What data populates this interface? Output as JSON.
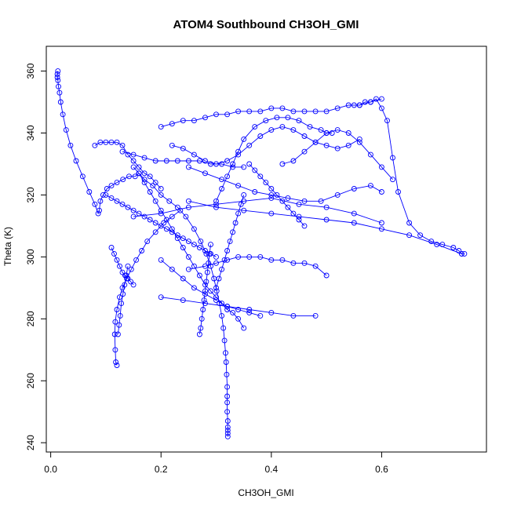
{
  "chart_data": {
    "type": "line",
    "title": "ATOM4 Southbound CH3OH_GMI",
    "xlabel": "CH3OH_GMI",
    "ylabel": "Theta (K)",
    "xlim": [
      -0.008,
      0.79
    ],
    "ylim": [
      237,
      368
    ],
    "x_ticks": [
      0.0,
      0.2,
      0.4,
      0.6
    ],
    "x_tick_labels": [
      "0.0",
      "0.2",
      "0.4",
      "0.6"
    ],
    "y_ticks": [
      240,
      260,
      280,
      300,
      320,
      340,
      360
    ],
    "y_tick_labels": [
      "240",
      "260",
      "280",
      "300",
      "320",
      "340",
      "360"
    ],
    "grid": false,
    "marker": "open-circle",
    "series_color": "#0000ff",
    "series": [
      {
        "x": [
          0.013,
          0.012,
          0.012,
          0.013,
          0.014,
          0.016,
          0.018,
          0.022,
          0.028,
          0.036,
          0.046,
          0.058,
          0.07,
          0.08,
          0.086,
          0.088,
          0.09,
          0.095,
          0.102,
          0.11,
          0.12,
          0.131,
          0.142,
          0.153,
          0.16
        ],
        "y": [
          360,
          359,
          358,
          357,
          355,
          353,
          350,
          346,
          341,
          336,
          331,
          326,
          321,
          317,
          314,
          315,
          318,
          320,
          322,
          323,
          324,
          325,
          326,
          326,
          327
        ]
      },
      {
        "x": [
          0.16,
          0.17,
          0.185,
          0.2,
          0.215,
          0.23,
          0.245,
          0.26,
          0.272,
          0.282,
          0.29,
          0.296,
          0.301,
          0.306,
          0.31,
          0.313,
          0.315,
          0.317,
          0.318,
          0.319,
          0.32,
          0.32,
          0.32,
          0.32,
          0.321,
          0.321,
          0.321,
          0.321,
          0.321
        ],
        "y": [
          327,
          325,
          323,
          320,
          318,
          316,
          313,
          309,
          305,
          301,
          297,
          293,
          289,
          285,
          281,
          277,
          273,
          269,
          266,
          262,
          258,
          255,
          253,
          250,
          247,
          245,
          244,
          243,
          242
        ]
      },
      {
        "x": [
          0.12,
          0.118,
          0.117,
          0.116,
          0.117,
          0.12,
          0.125,
          0.13,
          0.138,
          0.146,
          0.155,
          0.165,
          0.175,
          0.19,
          0.205,
          0.22,
          0.235
        ],
        "y": [
          265,
          266,
          270,
          275,
          279,
          283,
          287,
          290,
          293,
          296,
          299,
          302,
          305,
          308,
          311,
          313,
          315
        ]
      },
      {
        "x": [
          0.122,
          0.124,
          0.126,
          0.128,
          0.131,
          0.134,
          0.137,
          0.14
        ],
        "y": [
          275,
          278,
          281,
          285,
          288,
          291,
          294,
          297
        ]
      },
      {
        "x": [
          0.2,
          0.22,
          0.24,
          0.26,
          0.28,
          0.3,
          0.32,
          0.34,
          0.36,
          0.38,
          0.4,
          0.42,
          0.44,
          0.46,
          0.48,
          0.5,
          0.52,
          0.54,
          0.56,
          0.58,
          0.6
        ],
        "y": [
          342,
          343,
          344,
          344,
          345,
          346,
          346,
          347,
          347,
          347,
          348,
          348,
          347,
          347,
          347,
          347,
          348,
          349,
          349,
          350,
          351
        ]
      },
      {
        "x": [
          0.55,
          0.56,
          0.57,
          0.58,
          0.59,
          0.6,
          0.61,
          0.62,
          0.63,
          0.65,
          0.67,
          0.69,
          0.71,
          0.73,
          0.74,
          0.745,
          0.75
        ],
        "y": [
          349,
          349,
          350,
          350,
          351,
          348,
          344,
          332,
          321,
          311,
          307,
          305,
          304,
          303,
          302,
          301,
          301
        ]
      },
      {
        "x": [
          0.25,
          0.3,
          0.35,
          0.4,
          0.45,
          0.5,
          0.55,
          0.6,
          0.65,
          0.7,
          0.745
        ],
        "y": [
          318,
          316,
          315,
          314,
          313,
          312,
          311,
          309,
          307,
          304,
          301
        ]
      },
      {
        "x": [
          0.15,
          0.2,
          0.25,
          0.3,
          0.35,
          0.4,
          0.45,
          0.5,
          0.55,
          0.6
        ],
        "y": [
          313,
          314,
          316,
          317,
          318,
          319,
          317,
          316,
          314,
          311
        ]
      },
      {
        "x": [
          0.22,
          0.24,
          0.26,
          0.28,
          0.3,
          0.32,
          0.34,
          0.36,
          0.38,
          0.4,
          0.42,
          0.44,
          0.46,
          0.48,
          0.5,
          0.52,
          0.54,
          0.56
        ],
        "y": [
          336,
          335,
          333,
          331,
          330,
          331,
          333,
          336,
          339,
          341,
          342,
          341,
          339,
          337,
          336,
          335,
          336,
          338
        ]
      },
      {
        "x": [
          0.3,
          0.31,
          0.32,
          0.33,
          0.34,
          0.35,
          0.37,
          0.39,
          0.41,
          0.43,
          0.45,
          0.47,
          0.49,
          0.5,
          0.51
        ],
        "y": [
          318,
          322,
          326,
          330,
          334,
          338,
          342,
          344,
          345,
          345,
          344,
          342,
          341,
          340,
          340
        ]
      },
      {
        "x": [
          0.25,
          0.28,
          0.31,
          0.34,
          0.37,
          0.4,
          0.43,
          0.46,
          0.49,
          0.52,
          0.55,
          0.58,
          0.6
        ],
        "y": [
          329,
          327,
          325,
          323,
          321,
          320,
          319,
          318,
          318,
          320,
          322,
          323,
          321
        ]
      },
      {
        "x": [
          0.25,
          0.28,
          0.3,
          0.32,
          0.34,
          0.36,
          0.38,
          0.4,
          0.42,
          0.44,
          0.46,
          0.48,
          0.5
        ],
        "y": [
          296,
          297,
          298,
          299,
          300,
          300,
          300,
          299,
          299,
          298,
          298,
          297,
          294
        ]
      },
      {
        "x": [
          0.2,
          0.22,
          0.24,
          0.26,
          0.28,
          0.3,
          0.32,
          0.34,
          0.36,
          0.38
        ],
        "y": [
          299,
          296,
          293,
          290,
          288,
          286,
          284,
          283,
          282,
          281
        ]
      },
      {
        "x": [
          0.36,
          0.37,
          0.38,
          0.39,
          0.4,
          0.41,
          0.42,
          0.43,
          0.44,
          0.45,
          0.46
        ],
        "y": [
          330,
          328,
          326,
          324,
          322,
          320,
          318,
          316,
          314,
          312,
          310
        ]
      },
      {
        "x": [
          0.08,
          0.09,
          0.1,
          0.11,
          0.12,
          0.13,
          0.14,
          0.15,
          0.16,
          0.17,
          0.18,
          0.19,
          0.2
        ],
        "y": [
          336,
          337,
          337,
          337,
          337,
          336,
          333,
          331,
          329,
          327,
          326,
          324,
          322
        ]
      },
      {
        "x": [
          0.1,
          0.11,
          0.12,
          0.13,
          0.14,
          0.15,
          0.16,
          0.17,
          0.18,
          0.19,
          0.2,
          0.21,
          0.22,
          0.23,
          0.24,
          0.25,
          0.26,
          0.27,
          0.28,
          0.29,
          0.3
        ],
        "y": [
          320,
          319,
          318,
          317,
          316,
          315,
          314,
          313,
          312,
          311,
          310,
          309,
          308,
          307,
          306,
          305,
          304,
          303,
          302,
          301,
          300
        ]
      },
      {
        "x": [
          0.11,
          0.115,
          0.12,
          0.125,
          0.13,
          0.135,
          0.14,
          0.145,
          0.15
        ],
        "y": [
          303,
          301,
          299,
          297,
          295,
          294,
          293,
          292,
          291
        ]
      },
      {
        "x": [
          0.15,
          0.16,
          0.17,
          0.18,
          0.19,
          0.2,
          0.21,
          0.22,
          0.23,
          0.24,
          0.25,
          0.26,
          0.27,
          0.28,
          0.29,
          0.3,
          0.31,
          0.32,
          0.33,
          0.34,
          0.35
        ],
        "y": [
          329,
          327,
          324,
          321,
          318,
          315,
          312,
          309,
          306,
          303,
          300,
          297,
          294,
          291,
          289,
          287,
          285,
          283,
          282,
          280,
          277
        ]
      },
      {
        "x": [
          0.27,
          0.272,
          0.274,
          0.276,
          0.278,
          0.28,
          0.282,
          0.284,
          0.286,
          0.288,
          0.29
        ],
        "y": [
          275,
          277,
          280,
          283,
          286,
          289,
          292,
          295,
          298,
          301,
          304
        ]
      },
      {
        "x": [
          0.3,
          0.305,
          0.31,
          0.315,
          0.32,
          0.325,
          0.33,
          0.335,
          0.34,
          0.345,
          0.35
        ],
        "y": [
          290,
          293,
          296,
          299,
          302,
          305,
          308,
          311,
          314,
          317,
          320
        ]
      },
      {
        "x": [
          0.13,
          0.15,
          0.17,
          0.19,
          0.21,
          0.23,
          0.25,
          0.27,
          0.29,
          0.31,
          0.33,
          0.35
        ],
        "y": [
          334,
          333,
          332,
          331,
          331,
          331,
          331,
          331,
          330,
          330,
          329,
          329
        ]
      },
      {
        "x": [
          0.42,
          0.44,
          0.46,
          0.48,
          0.5,
          0.52,
          0.54,
          0.56,
          0.58,
          0.6,
          0.62
        ],
        "y": [
          330,
          331,
          334,
          337,
          340,
          341,
          340,
          337,
          333,
          329,
          325
        ]
      },
      {
        "x": [
          0.2,
          0.24,
          0.28,
          0.32,
          0.36,
          0.4,
          0.44,
          0.48
        ],
        "y": [
          287,
          286,
          285,
          284,
          283,
          282,
          281,
          281
        ]
      }
    ]
  }
}
